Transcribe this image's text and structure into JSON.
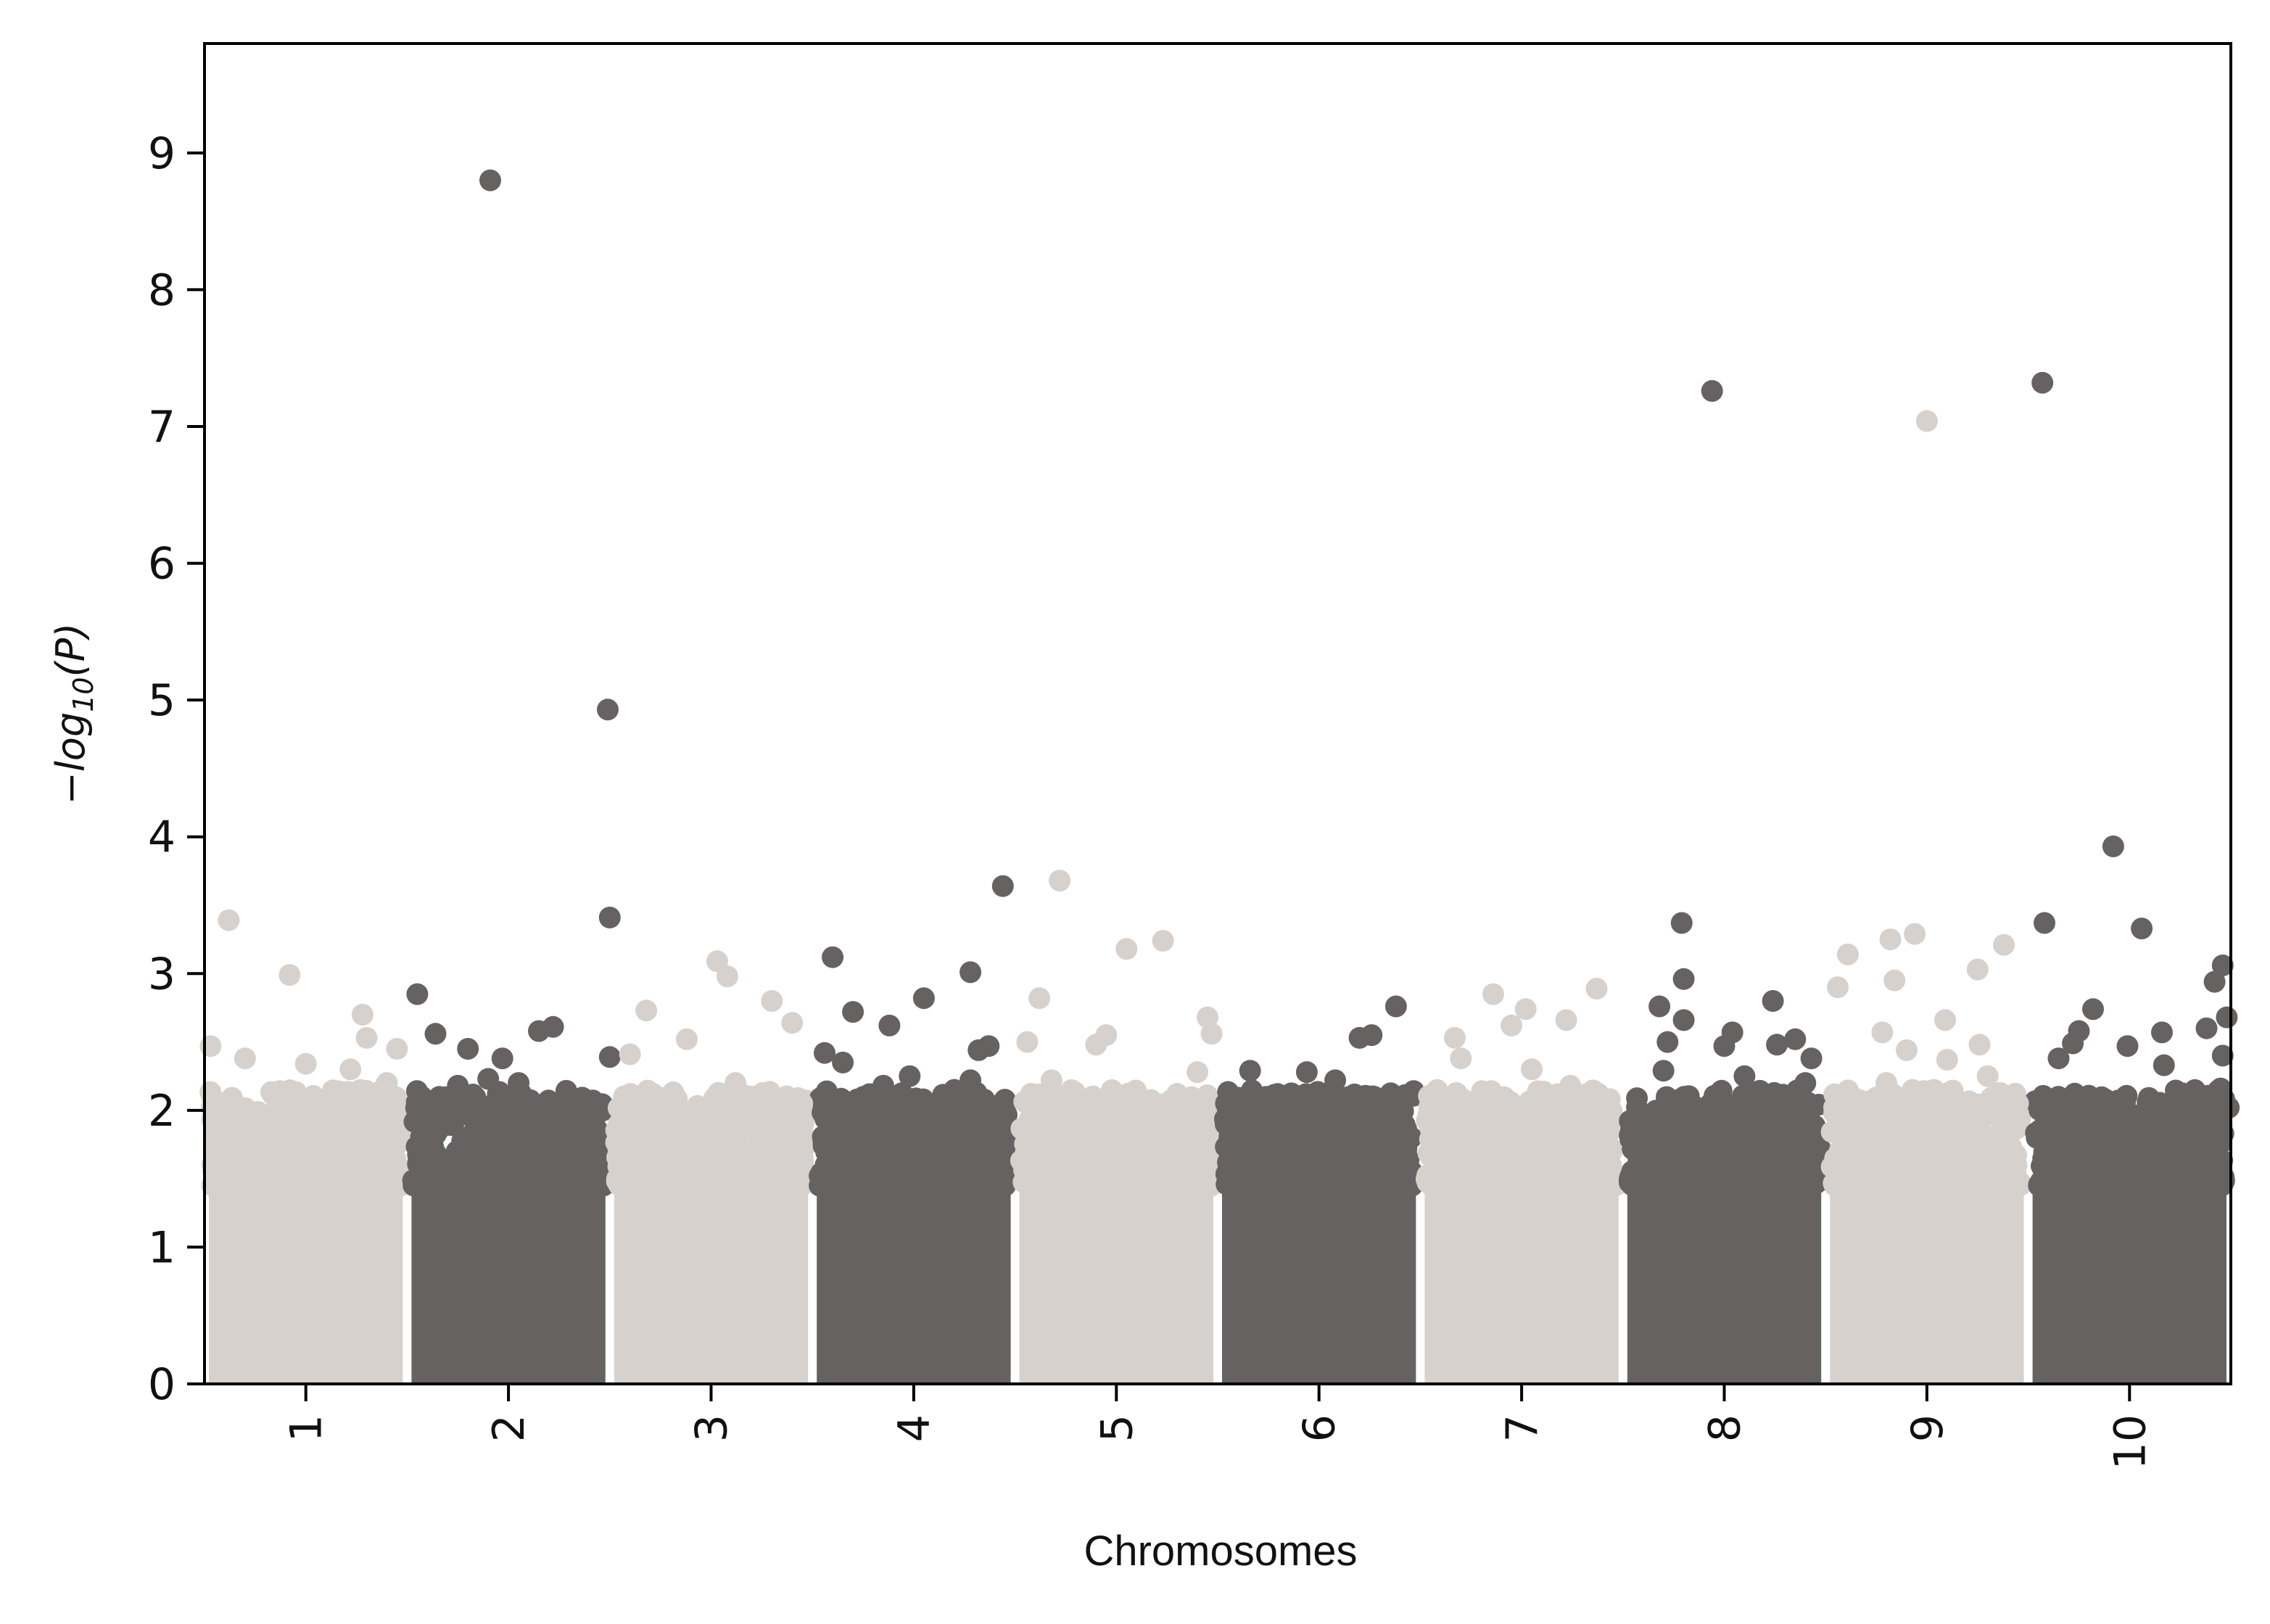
{
  "chart_data": {
    "type": "scatter",
    "subtype": "manhattan",
    "title": "",
    "xlabel": "Chromosomes",
    "ylabel": "−log10(P)",
    "ylabel_parts": {
      "prefix": "−log",
      "subscript": "10",
      "suffix": "(P)"
    },
    "ylim": [
      0,
      9.8
    ],
    "yticks": [
      0,
      1,
      2,
      3,
      4,
      5,
      6,
      7,
      8,
      9
    ],
    "grid": false,
    "legend": "none",
    "colors": {
      "dark": "#666262",
      "light": "#d7d1cd",
      "axis": "#000000",
      "background": "#ffffff"
    },
    "chromosomes": [
      {
        "label": "1",
        "color": "light"
      },
      {
        "label": "2",
        "color": "dark"
      },
      {
        "label": "3",
        "color": "light"
      },
      {
        "label": "4",
        "color": "dark"
      },
      {
        "label": "5",
        "color": "light"
      },
      {
        "label": "6",
        "color": "dark"
      },
      {
        "label": "7",
        "color": "light"
      },
      {
        "label": "8",
        "color": "dark"
      },
      {
        "label": "9",
        "color": "light"
      },
      {
        "label": "10",
        "color": "dark"
      }
    ],
    "density": {
      "bulk_max": 1.45,
      "rings": [
        [
          1,
          0.95
        ],
        [
          2,
          0.6
        ],
        [
          3,
          0.32
        ]
      ]
    },
    "scatter_points": [
      {
        "chr": "1",
        "pos": 0.03,
        "y": 2.47
      },
      {
        "chr": "1",
        "pos": 0.12,
        "y": 3.39
      },
      {
        "chr": "1",
        "pos": 0.2,
        "y": 2.38
      },
      {
        "chr": "1",
        "pos": 0.42,
        "y": 2.99
      },
      {
        "chr": "1",
        "pos": 0.5,
        "y": 2.34
      },
      {
        "chr": "1",
        "pos": 0.72,
        "y": 2.3
      },
      {
        "chr": "1",
        "pos": 0.78,
        "y": 2.7
      },
      {
        "chr": "1",
        "pos": 0.8,
        "y": 2.53
      },
      {
        "chr": "1",
        "pos": 0.9,
        "y": 2.2
      },
      {
        "chr": "1",
        "pos": 0.14,
        "y": 1.97
      },
      {
        "chr": "1",
        "pos": 0.35,
        "y": 2.1
      },
      {
        "chr": "1",
        "pos": 0.6,
        "y": 1.85
      },
      {
        "chr": "1",
        "pos": 0.95,
        "y": 2.45
      },
      {
        "chr": "2",
        "pos": 0.05,
        "y": 2.85
      },
      {
        "chr": "2",
        "pos": 0.14,
        "y": 2.56
      },
      {
        "chr": "2",
        "pos": 0.3,
        "y": 2.45
      },
      {
        "chr": "2",
        "pos": 0.4,
        "y": 2.23
      },
      {
        "chr": "2",
        "pos": 0.41,
        "y": 8.8
      },
      {
        "chr": "2",
        "pos": 0.47,
        "y": 2.38
      },
      {
        "chr": "2",
        "pos": 0.65,
        "y": 2.58
      },
      {
        "chr": "2",
        "pos": 0.72,
        "y": 2.61
      },
      {
        "chr": "2",
        "pos": 0.8,
        "y": 1.91
      },
      {
        "chr": "2",
        "pos": 0.86,
        "y": 2.07
      },
      {
        "chr": "2",
        "pos": 0.55,
        "y": 2.2
      },
      {
        "chr": "2",
        "pos": 0.25,
        "y": 2.18
      },
      {
        "chr": "2",
        "pos": 0.99,
        "y": 4.93
      },
      {
        "chr": "2",
        "pos": 1.0,
        "y": 3.41
      },
      {
        "chr": "2",
        "pos": 1.0,
        "y": 2.39
      },
      {
        "chr": "3",
        "pos": 0.1,
        "y": 2.41
      },
      {
        "chr": "3",
        "pos": 0.18,
        "y": 2.73
      },
      {
        "chr": "3",
        "pos": 0.38,
        "y": 2.52
      },
      {
        "chr": "3",
        "pos": 0.53,
        "y": 3.09
      },
      {
        "chr": "3",
        "pos": 0.58,
        "y": 2.98
      },
      {
        "chr": "3",
        "pos": 0.62,
        "y": 2.2
      },
      {
        "chr": "3",
        "pos": 0.8,
        "y": 2.8
      },
      {
        "chr": "3",
        "pos": 0.9,
        "y": 2.64
      },
      {
        "chr": "3",
        "pos": 0.72,
        "y": 2.1
      },
      {
        "chr": "3",
        "pos": 0.95,
        "y": 2.05
      },
      {
        "chr": "4",
        "pos": 0.1,
        "y": 3.12
      },
      {
        "chr": "4",
        "pos": 0.06,
        "y": 2.42
      },
      {
        "chr": "4",
        "pos": 0.15,
        "y": 2.35
      },
      {
        "chr": "4",
        "pos": 0.2,
        "y": 2.72
      },
      {
        "chr": "4",
        "pos": 0.38,
        "y": 2.62
      },
      {
        "chr": "4",
        "pos": 0.55,
        "y": 2.82
      },
      {
        "chr": "4",
        "pos": 0.35,
        "y": 2.18
      },
      {
        "chr": "4",
        "pos": 0.48,
        "y": 2.25
      },
      {
        "chr": "4",
        "pos": 0.78,
        "y": 3.01
      },
      {
        "chr": "4",
        "pos": 0.82,
        "y": 2.44
      },
      {
        "chr": "4",
        "pos": 0.87,
        "y": 2.47
      },
      {
        "chr": "4",
        "pos": 0.7,
        "y": 2.15
      },
      {
        "chr": "4",
        "pos": 0.94,
        "y": 3.64
      },
      {
        "chr": "4",
        "pos": 0.78,
        "y": 2.22
      },
      {
        "chr": "5",
        "pos": 0.06,
        "y": 2.5
      },
      {
        "chr": "5",
        "pos": 0.12,
        "y": 2.82
      },
      {
        "chr": "5",
        "pos": 0.22,
        "y": 3.68
      },
      {
        "chr": "5",
        "pos": 0.18,
        "y": 2.22
      },
      {
        "chr": "5",
        "pos": 0.27,
        "y": 1.98
      },
      {
        "chr": "5",
        "pos": 0.4,
        "y": 2.48
      },
      {
        "chr": "5",
        "pos": 0.45,
        "y": 2.55
      },
      {
        "chr": "5",
        "pos": 0.55,
        "y": 3.18
      },
      {
        "chr": "5",
        "pos": 0.73,
        "y": 3.24
      },
      {
        "chr": "5",
        "pos": 0.8,
        "y": 2.12
      },
      {
        "chr": "5",
        "pos": 0.95,
        "y": 2.68
      },
      {
        "chr": "5",
        "pos": 0.97,
        "y": 2.56
      },
      {
        "chr": "5",
        "pos": 0.9,
        "y": 2.28
      },
      {
        "chr": "6",
        "pos": 0.16,
        "y": 2.29
      },
      {
        "chr": "6",
        "pos": 0.44,
        "y": 2.28
      },
      {
        "chr": "6",
        "pos": 0.58,
        "y": 2.22
      },
      {
        "chr": "6",
        "pos": 0.7,
        "y": 2.53
      },
      {
        "chr": "6",
        "pos": 0.76,
        "y": 2.55
      },
      {
        "chr": "6",
        "pos": 0.88,
        "y": 2.76
      },
      {
        "chr": "6",
        "pos": 0.87,
        "y": 2.1
      },
      {
        "chr": "6",
        "pos": 0.3,
        "y": 2.05
      },
      {
        "chr": "7",
        "pos": 0.17,
        "y": 2.53
      },
      {
        "chr": "7",
        "pos": 0.2,
        "y": 2.38
      },
      {
        "chr": "7",
        "pos": 0.36,
        "y": 2.85
      },
      {
        "chr": "7",
        "pos": 0.45,
        "y": 2.62
      },
      {
        "chr": "7",
        "pos": 0.52,
        "y": 2.74
      },
      {
        "chr": "7",
        "pos": 0.55,
        "y": 2.3
      },
      {
        "chr": "7",
        "pos": 0.72,
        "y": 2.66
      },
      {
        "chr": "7",
        "pos": 0.74,
        "y": 2.18
      },
      {
        "chr": "7",
        "pos": 0.87,
        "y": 2.89
      },
      {
        "chr": "7",
        "pos": 0.4,
        "y": 2.05
      },
      {
        "chr": "8",
        "pos": 0.2,
        "y": 2.29
      },
      {
        "chr": "8",
        "pos": 0.18,
        "y": 2.76
      },
      {
        "chr": "8",
        "pos": 0.22,
        "y": 2.5
      },
      {
        "chr": "8",
        "pos": 0.29,
        "y": 3.37
      },
      {
        "chr": "8",
        "pos": 0.3,
        "y": 2.96
      },
      {
        "chr": "8",
        "pos": 0.3,
        "y": 2.66
      },
      {
        "chr": "8",
        "pos": 0.44,
        "y": 7.26
      },
      {
        "chr": "8",
        "pos": 0.5,
        "y": 2.47
      },
      {
        "chr": "8",
        "pos": 0.54,
        "y": 2.57
      },
      {
        "chr": "8",
        "pos": 0.74,
        "y": 2.8
      },
      {
        "chr": "8",
        "pos": 0.76,
        "y": 2.48
      },
      {
        "chr": "8",
        "pos": 0.85,
        "y": 2.52
      },
      {
        "chr": "8",
        "pos": 0.93,
        "y": 2.38
      },
      {
        "chr": "8",
        "pos": 0.9,
        "y": 2.2
      },
      {
        "chr": "8",
        "pos": 0.6,
        "y": 2.25
      },
      {
        "chr": "8",
        "pos": 0.75,
        "y": 2.0
      },
      {
        "chr": "9",
        "pos": 0.06,
        "y": 2.9
      },
      {
        "chr": "9",
        "pos": 0.11,
        "y": 3.14
      },
      {
        "chr": "9",
        "pos": 0.28,
        "y": 2.57
      },
      {
        "chr": "9",
        "pos": 0.32,
        "y": 3.25
      },
      {
        "chr": "9",
        "pos": 0.34,
        "y": 2.95
      },
      {
        "chr": "9",
        "pos": 0.4,
        "y": 2.44
      },
      {
        "chr": "9",
        "pos": 0.44,
        "y": 3.29
      },
      {
        "chr": "9",
        "pos": 0.5,
        "y": 7.04
      },
      {
        "chr": "9",
        "pos": 0.59,
        "y": 2.66
      },
      {
        "chr": "9",
        "pos": 0.6,
        "y": 2.37
      },
      {
        "chr": "9",
        "pos": 0.76,
        "y": 2.48
      },
      {
        "chr": "9",
        "pos": 0.75,
        "y": 3.03
      },
      {
        "chr": "9",
        "pos": 0.88,
        "y": 3.21
      },
      {
        "chr": "9",
        "pos": 0.8,
        "y": 2.25
      },
      {
        "chr": "9",
        "pos": 0.95,
        "y": 2.05
      },
      {
        "chr": "9",
        "pos": 0.3,
        "y": 2.2
      },
      {
        "chr": "10",
        "pos": 0.07,
        "y": 7.32
      },
      {
        "chr": "10",
        "pos": 0.08,
        "y": 3.37
      },
      {
        "chr": "10",
        "pos": 0.15,
        "y": 2.38
      },
      {
        "chr": "10",
        "pos": 0.22,
        "y": 2.49
      },
      {
        "chr": "10",
        "pos": 0.25,
        "y": 2.58
      },
      {
        "chr": "10",
        "pos": 0.32,
        "y": 2.74
      },
      {
        "chr": "10",
        "pos": 0.42,
        "y": 3.93
      },
      {
        "chr": "10",
        "pos": 0.49,
        "y": 2.47
      },
      {
        "chr": "10",
        "pos": 0.56,
        "y": 3.33
      },
      {
        "chr": "10",
        "pos": 0.66,
        "y": 2.57
      },
      {
        "chr": "10",
        "pos": 0.67,
        "y": 2.33
      },
      {
        "chr": "10",
        "pos": 0.8,
        "y": 1.8
      },
      {
        "chr": "10",
        "pos": 0.88,
        "y": 2.6
      },
      {
        "chr": "10",
        "pos": 0.92,
        "y": 2.94
      },
      {
        "chr": "10",
        "pos": 0.96,
        "y": 3.06
      },
      {
        "chr": "10",
        "pos": 0.98,
        "y": 2.68
      },
      {
        "chr": "10",
        "pos": 0.95,
        "y": 2.16
      },
      {
        "chr": "10",
        "pos": 0.99,
        "y": 2.02
      },
      {
        "chr": "10",
        "pos": 0.96,
        "y": 2.4
      }
    ]
  }
}
